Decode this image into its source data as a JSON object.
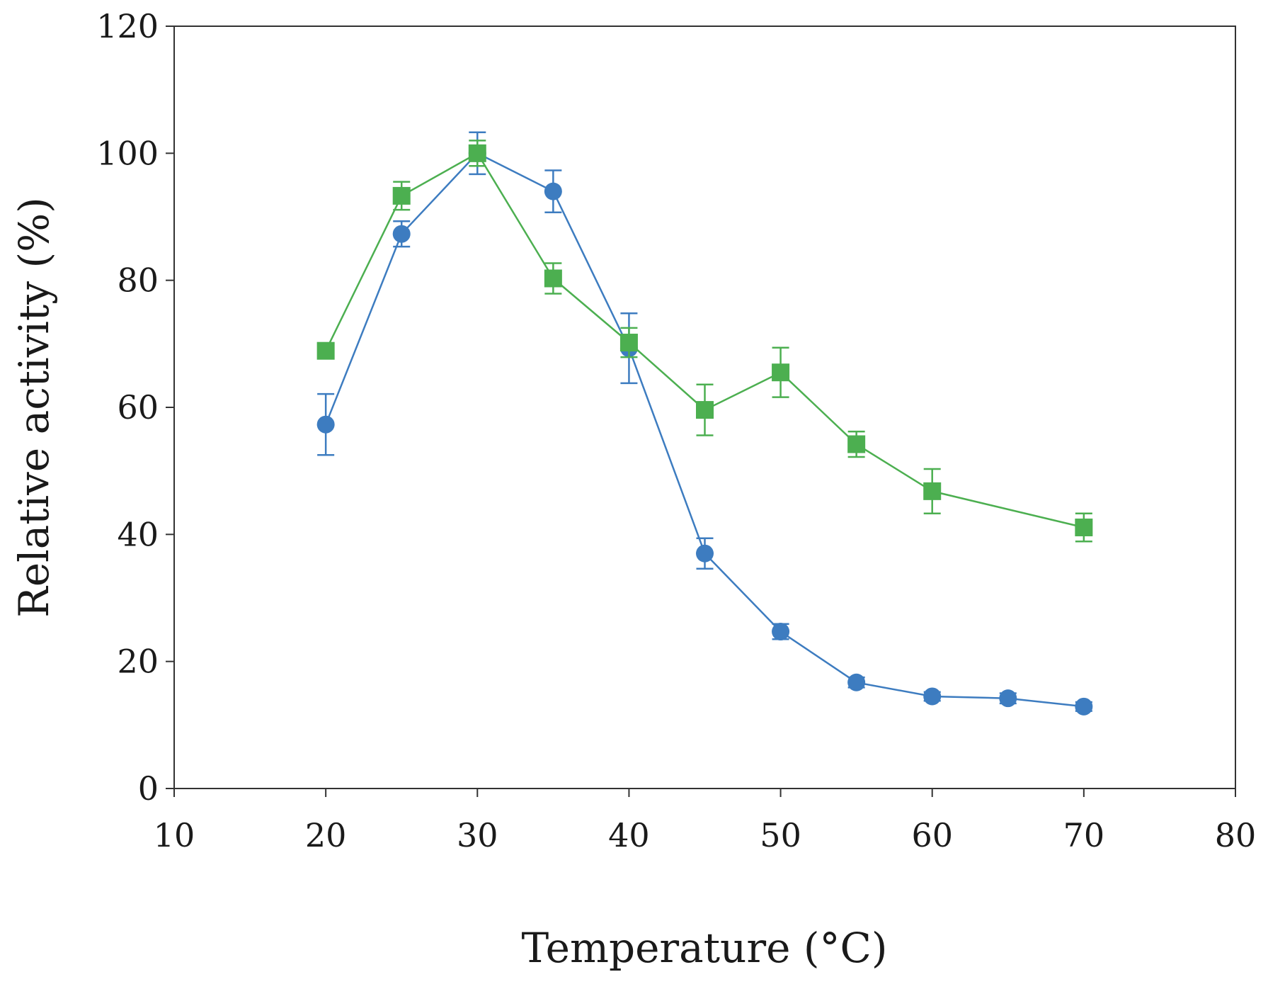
{
  "chart_data": {
    "type": "line",
    "title": "",
    "xlabel": "Temperature (°C)",
    "ylabel": "Relative activity (%)",
    "xlim": [
      10,
      80
    ],
    "ylim": [
      0,
      120
    ],
    "xticks": [
      10,
      20,
      30,
      40,
      50,
      60,
      70,
      80
    ],
    "yticks": [
      0,
      20,
      40,
      60,
      80,
      100,
      120
    ],
    "grid": false,
    "legend": "none",
    "series": [
      {
        "name": "blue-circles",
        "marker": "circle",
        "color": "#3d7cc0",
        "x": [
          20,
          25,
          30,
          35,
          40,
          45,
          50,
          55,
          60,
          65,
          70
        ],
        "y": [
          57.3,
          87.3,
          100,
          94,
          69.3,
          37,
          24.7,
          16.7,
          14.5,
          14.2,
          12.9
        ],
        "err": [
          4.8,
          2.0,
          3.3,
          3.3,
          5.5,
          2.4,
          1.2,
          0.8,
          0.7,
          0.8,
          0.7
        ]
      },
      {
        "name": "green-squares",
        "marker": "square",
        "color": "#4caf50",
        "x": [
          20,
          25,
          30,
          35,
          40,
          45,
          50,
          55,
          60,
          70
        ],
        "y": [
          68.9,
          93.3,
          100,
          80.3,
          70.2,
          59.6,
          65.5,
          54.2,
          46.8,
          41.1
        ],
        "err": [
          1.0,
          2.2,
          2.0,
          2.4,
          2.3,
          4.0,
          3.9,
          2.0,
          3.5,
          2.2
        ]
      }
    ]
  }
}
